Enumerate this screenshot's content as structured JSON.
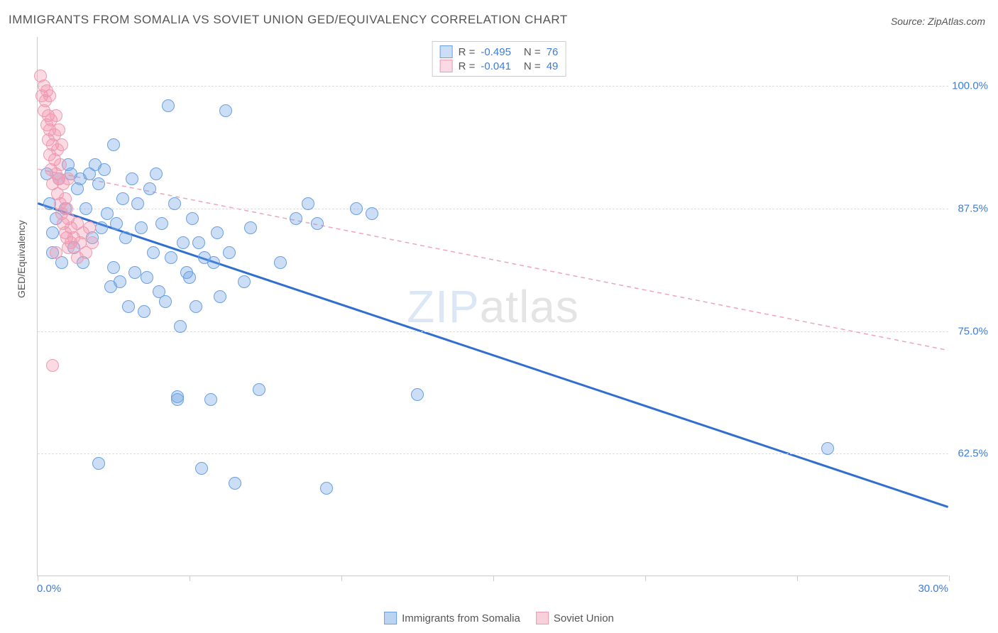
{
  "title": "IMMIGRANTS FROM SOMALIA VS SOVIET UNION GED/EQUIVALENCY CORRELATION CHART",
  "source": "Source: ZipAtlas.com",
  "y_axis_label": "GED/Equivalency",
  "watermark_zip": "ZIP",
  "watermark_atlas": "atlas",
  "chart": {
    "type": "scatter",
    "xlim": [
      0,
      30
    ],
    "ylim": [
      50,
      105
    ],
    "x_ticks": [
      0,
      5,
      10,
      15,
      20,
      25,
      30
    ],
    "x_tick_labels_visible": {
      "0": "0.0%",
      "30": "30.0%"
    },
    "y_grid": [
      62.5,
      75.0,
      87.5,
      100.0
    ],
    "y_tick_labels": [
      "62.5%",
      "75.0%",
      "87.5%",
      "100.0%"
    ],
    "background_color": "#ffffff",
    "grid_color": "#dddddd",
    "axis_color": "#cccccc",
    "label_color": "#555555",
    "tick_label_color": "#3b7dd8",
    "tick_fontsize": 15,
    "title_fontsize": 17,
    "label_fontsize": 14,
    "marker_radius": 9,
    "marker_opacity": 0.45,
    "series": [
      {
        "name": "Immigrants from Somalia",
        "color_fill": "rgba(105,160,225,0.35)",
        "color_stroke": "#6aa0e1",
        "trend_color": "#2f6fd0",
        "trend_width": 3,
        "trend_dash": "none",
        "trend_start": [
          0,
          88.0
        ],
        "trend_end": [
          30,
          57.0
        ],
        "R": "-0.495",
        "N": "76",
        "points": [
          [
            0.3,
            91.0
          ],
          [
            0.4,
            88.0
          ],
          [
            0.6,
            86.5
          ],
          [
            0.5,
            85.0
          ],
          [
            0.7,
            90.5
          ],
          [
            0.9,
            87.5
          ],
          [
            1.0,
            92.0
          ],
          [
            1.1,
            91.0
          ],
          [
            1.3,
            89.5
          ],
          [
            1.4,
            90.5
          ],
          [
            1.6,
            87.5
          ],
          [
            1.7,
            91.0
          ],
          [
            1.8,
            84.5
          ],
          [
            1.9,
            92.0
          ],
          [
            2.0,
            90.0
          ],
          [
            2.1,
            85.5
          ],
          [
            2.2,
            91.5
          ],
          [
            2.3,
            87.0
          ],
          [
            2.5,
            94.0
          ],
          [
            2.5,
            81.5
          ],
          [
            2.7,
            80.0
          ],
          [
            2.8,
            88.5
          ],
          [
            2.9,
            84.5
          ],
          [
            3.0,
            77.5
          ],
          [
            3.1,
            90.5
          ],
          [
            3.2,
            81.0
          ],
          [
            3.3,
            88.0
          ],
          [
            3.4,
            85.5
          ],
          [
            3.5,
            77.0
          ],
          [
            3.7,
            89.5
          ],
          [
            3.8,
            83.0
          ],
          [
            3.9,
            91.0
          ],
          [
            4.0,
            79.0
          ],
          [
            4.1,
            86.0
          ],
          [
            4.3,
            98.0
          ],
          [
            4.4,
            82.5
          ],
          [
            4.5,
            88.0
          ],
          [
            4.6,
            68.0
          ],
          [
            4.6,
            68.3
          ],
          [
            4.8,
            84.0
          ],
          [
            5.0,
            80.5
          ],
          [
            5.1,
            86.5
          ],
          [
            5.2,
            77.5
          ],
          [
            5.4,
            61.0
          ],
          [
            5.7,
            68.0
          ],
          [
            5.8,
            82.0
          ],
          [
            6.0,
            78.5
          ],
          [
            6.2,
            97.5
          ],
          [
            6.5,
            59.5
          ],
          [
            6.8,
            80.0
          ],
          [
            7.0,
            85.5
          ],
          [
            7.3,
            69.0
          ],
          [
            8.0,
            82.0
          ],
          [
            8.5,
            86.5
          ],
          [
            8.9,
            88.0
          ],
          [
            9.2,
            86.0
          ],
          [
            9.5,
            59.0
          ],
          [
            10.5,
            87.5
          ],
          [
            11.0,
            87.0
          ],
          [
            12.5,
            68.5
          ],
          [
            26.0,
            63.0
          ],
          [
            0.5,
            83.0
          ],
          [
            0.8,
            82.0
          ],
          [
            1.2,
            83.5
          ],
          [
            1.5,
            82.0
          ],
          [
            2.4,
            79.5
          ],
          [
            2.6,
            86.0
          ],
          [
            3.6,
            80.5
          ],
          [
            4.2,
            78.0
          ],
          [
            4.7,
            75.5
          ],
          [
            4.9,
            81.0
          ],
          [
            5.3,
            84.0
          ],
          [
            5.5,
            82.5
          ],
          [
            5.9,
            85.0
          ],
          [
            6.3,
            83.0
          ],
          [
            2.0,
            61.5
          ]
        ]
      },
      {
        "name": "Soviet Union",
        "color_fill": "rgba(240,150,175,0.35)",
        "color_stroke": "#ef9ab0",
        "trend_color": "#eca6b8",
        "trend_width": 1.5,
        "trend_dash": "6,5",
        "trend_start": [
          0,
          91.5
        ],
        "trend_end": [
          30,
          73.0
        ],
        "R": "-0.041",
        "N": "49",
        "points": [
          [
            0.1,
            101.0
          ],
          [
            0.15,
            99.0
          ],
          [
            0.2,
            100.0
          ],
          [
            0.2,
            97.5
          ],
          [
            0.25,
            98.5
          ],
          [
            0.3,
            96.0
          ],
          [
            0.3,
            99.5
          ],
          [
            0.35,
            94.5
          ],
          [
            0.35,
            97.0
          ],
          [
            0.4,
            95.5
          ],
          [
            0.4,
            93.0
          ],
          [
            0.45,
            96.5
          ],
          [
            0.45,
            91.5
          ],
          [
            0.5,
            94.0
          ],
          [
            0.5,
            90.0
          ],
          [
            0.55,
            92.5
          ],
          [
            0.55,
            95.0
          ],
          [
            0.6,
            91.0
          ],
          [
            0.6,
            97.0
          ],
          [
            0.65,
            93.5
          ],
          [
            0.65,
            89.0
          ],
          [
            0.7,
            90.5
          ],
          [
            0.7,
            95.5
          ],
          [
            0.75,
            88.0
          ],
          [
            0.75,
            92.0
          ],
          [
            0.8,
            87.0
          ],
          [
            0.8,
            94.0
          ],
          [
            0.85,
            86.0
          ],
          [
            0.85,
            90.0
          ],
          [
            0.9,
            88.5
          ],
          [
            0.9,
            85.0
          ],
          [
            0.95,
            87.5
          ],
          [
            0.95,
            84.5
          ],
          [
            1.0,
            86.5
          ],
          [
            1.0,
            83.5
          ],
          [
            1.1,
            85.5
          ],
          [
            1.1,
            84.0
          ],
          [
            1.2,
            84.5
          ],
          [
            1.3,
            86.0
          ],
          [
            1.3,
            82.5
          ],
          [
            1.4,
            84.0
          ],
          [
            1.5,
            85.0
          ],
          [
            1.6,
            83.0
          ],
          [
            1.7,
            85.5
          ],
          [
            1.8,
            84.0
          ],
          [
            0.5,
            71.5
          ],
          [
            0.6,
            83.0
          ],
          [
            1.0,
            90.5
          ],
          [
            0.4,
            99.0
          ]
        ]
      }
    ]
  },
  "legend_bottom": [
    {
      "label": "Immigrants from Somalia",
      "fill": "rgba(105,160,225,0.45)",
      "stroke": "#6aa0e1"
    },
    {
      "label": "Soviet Union",
      "fill": "rgba(240,150,175,0.45)",
      "stroke": "#ef9ab0"
    }
  ]
}
